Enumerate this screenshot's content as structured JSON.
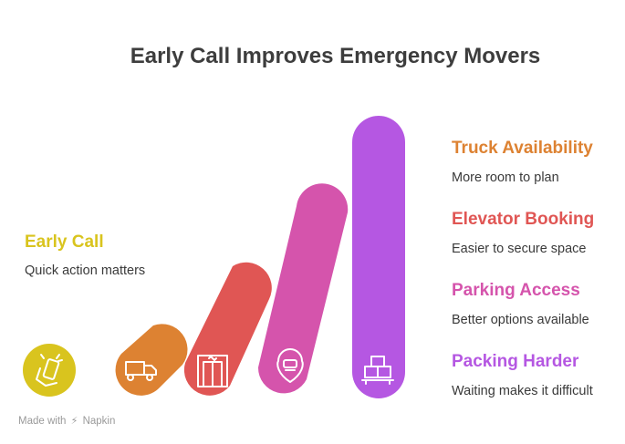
{
  "title": "Early Call Improves Emergency Movers",
  "colors": {
    "early_call": "#D9C41E",
    "truck": "#DD8232",
    "elevator": "#E05654",
    "parking": "#D554AC",
    "packing": "#B557E2"
  },
  "stages": [
    {
      "title": "Early Call",
      "description": "Quick action matters",
      "icon": "phone-hand-icon",
      "color": "#D9C41E"
    },
    {
      "title": "Truck Availability",
      "description": "More room to plan",
      "icon": "truck-icon",
      "color": "#DD8232"
    },
    {
      "title": "Elevator Booking",
      "description": "Easier to secure space",
      "icon": "elevator-icon",
      "color": "#E05654"
    },
    {
      "title": "Parking Access",
      "description": "Better options available",
      "icon": "parking-pin-icon",
      "color": "#D554AC"
    },
    {
      "title": "Packing Harder",
      "description": "Waiting makes it difficult",
      "icon": "boxes-icon",
      "color": "#B557E2"
    }
  ],
  "watermark": {
    "prefix": "Made with",
    "brand": "Napkin"
  }
}
